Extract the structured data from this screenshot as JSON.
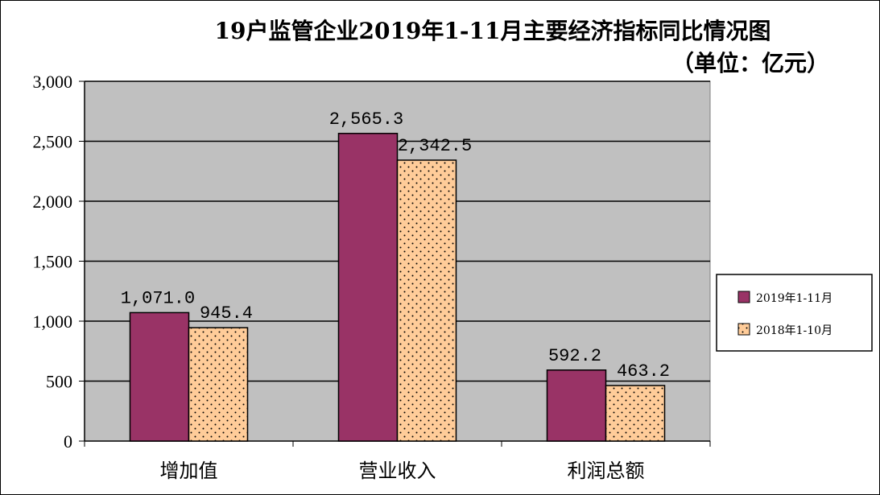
{
  "chart_data": {
    "type": "bar",
    "title": "19户监管企业2019年1-11月主要经济指标同比情况图",
    "subtitle": "（单位：亿元）",
    "categories": [
      "增加值",
      "营业收入",
      "利润总额"
    ],
    "series": [
      {
        "name": "2019年1-11月",
        "values": [
          1071.0,
          2565.3,
          592.2
        ],
        "labels": [
          "1,071.0",
          "2,565.3",
          "592.2"
        ],
        "color": "#993366",
        "pattern": "solid"
      },
      {
        "name": "2018年1-10月",
        "values": [
          945.4,
          2342.5,
          463.2
        ],
        "labels": [
          "945.4",
          "2,342.5",
          "463.2"
        ],
        "color": "#FFCC99",
        "pattern": "dots"
      }
    ],
    "ylim": [
      0,
      3000
    ],
    "yticks": [
      0,
      500,
      1000,
      1500,
      2000,
      2500,
      3000
    ],
    "ytick_labels": [
      "0",
      "500",
      "1,000",
      "1,500",
      "2,000",
      "2,500",
      "3,000"
    ],
    "grid": true,
    "plot_background": "#C0C0C0",
    "legend_position": "right"
  }
}
